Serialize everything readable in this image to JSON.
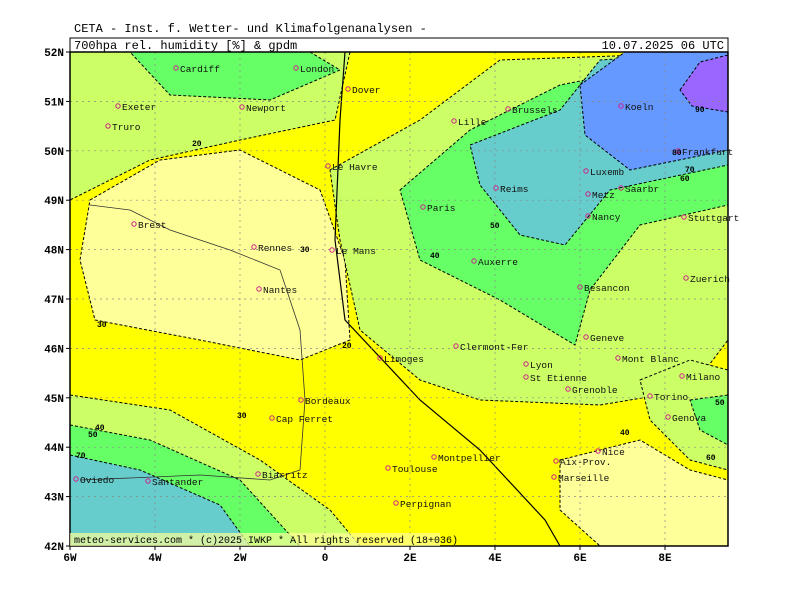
{
  "header": {
    "source": "CETA - Inst. f. Wetter- und Klimafolgenanalysen -",
    "field": "700hpa rel. humidity [%] & gpdm",
    "date": "10.07.2025 06 UTC"
  },
  "latitude_labels": [
    "52N",
    "51N",
    "50N",
    "49N",
    "48N",
    "47N",
    "46N",
    "45N",
    "44N",
    "43N",
    "42N"
  ],
  "longitude_labels": [
    "6W",
    "4W",
    "2W",
    "0",
    "2E",
    "4E",
    "6E",
    "8E"
  ],
  "cities": [
    "Cardiff",
    "London",
    "Dover",
    "Exeter",
    "Newport",
    "Truro",
    "Lille",
    "Brussels",
    "Koeln",
    "Frankfurt",
    "Le Havre",
    "Luxemb",
    "Reims",
    "Metz",
    "Saarbr",
    "Paris",
    "Brest",
    "Nancy",
    "Stuttgart",
    "Rennes",
    "Le Mans",
    "Auxerre",
    "Nantes",
    "Besancon",
    "Zuerich",
    "Geneve",
    "Limoges",
    "Clermont-Fer",
    "Lyon",
    "Mont Blanc",
    "St Etienne",
    "Milano",
    "Grenoble",
    "Bordeaux",
    "Torino",
    "Genova",
    "Cap Ferret",
    "Nice",
    "Montpellier",
    "Aix-Prov.",
    "Toulouse",
    "Biarritz",
    "Marseille",
    "Oviedo",
    "Santander",
    "Perpignan"
  ],
  "contour_labels": [
    "90",
    "80",
    "70",
    "60",
    "50",
    "40",
    "30",
    "20",
    "30",
    "40",
    "50",
    "30",
    "20",
    "40",
    "50",
    "60",
    "70"
  ],
  "footer": "meteo-services.com * (c)2025 IWKP * All rights reserved (18+036)"
}
